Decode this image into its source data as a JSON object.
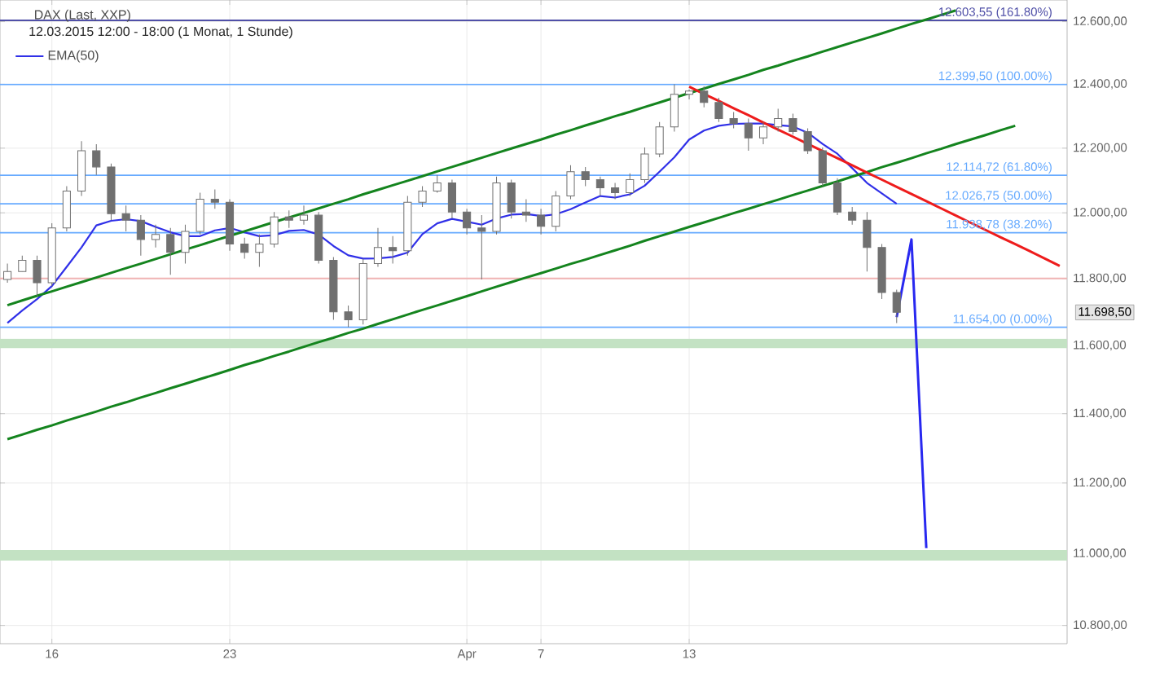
{
  "chart_data": {
    "type": "candlestick",
    "title": "DAX (Last, XXP)",
    "subtitle": "12.03.2015 12:00 - 18:00 (1 Monat, 1 Stunde)",
    "color": "#707070",
    "categories": [
      null,
      null,
      null,
      "16",
      null,
      null,
      null,
      null,
      null,
      null,
      null,
      null,
      null,
      null,
      null,
      "23",
      null,
      null,
      null,
      null,
      null,
      null,
      null,
      null,
      null,
      null,
      null,
      null,
      null,
      null,
      null,
      "Apr",
      null,
      null,
      null,
      null,
      "7",
      null,
      null,
      null,
      null,
      null,
      null,
      null,
      null,
      null,
      "13",
      null,
      null,
      null,
      null,
      null,
      null,
      null,
      null,
      null,
      null,
      null,
      null,
      null,
      null,
      null,
      null,
      null,
      null,
      null,
      null,
      null,
      null,
      null,
      null,
      null
    ],
    "ohlc": [
      [
        11797,
        11845,
        11787,
        11821
      ],
      [
        11821,
        11869,
        11821,
        11855
      ],
      [
        11855,
        11869,
        11748,
        11787
      ],
      [
        11787,
        11967,
        11777,
        11953
      ],
      [
        11953,
        12081,
        11943,
        12066
      ],
      [
        12066,
        12221,
        12051,
        12191
      ],
      [
        12191,
        12211,
        12116,
        12141
      ],
      [
        12141,
        12151,
        11977,
        11997
      ],
      [
        11997,
        12022,
        11943,
        11977
      ],
      [
        11977,
        11992,
        11869,
        11918
      ],
      [
        11918,
        11963,
        11894,
        11933
      ],
      [
        11933,
        11953,
        11811,
        11879
      ],
      [
        11879,
        11963,
        11845,
        11943
      ],
      [
        11943,
        12061,
        11933,
        12041
      ],
      [
        12041,
        12071,
        12012,
        12032
      ],
      [
        12032,
        12041,
        11884,
        11904
      ],
      [
        11904,
        11923,
        11860,
        11879
      ],
      [
        11879,
        11933,
        11835,
        11904
      ],
      [
        11904,
        12002,
        11894,
        11987
      ],
      [
        11987,
        12007,
        11953,
        11977
      ],
      [
        11977,
        12022,
        11963,
        11992
      ],
      [
        11992,
        12002,
        11845,
        11855
      ],
      [
        11855,
        11865,
        11676,
        11700
      ],
      [
        11700,
        11719,
        11654,
        11676
      ],
      [
        11676,
        11860,
        11662,
        11845
      ],
      [
        11845,
        11953,
        11835,
        11894
      ],
      [
        11894,
        11928,
        11845,
        11884
      ],
      [
        11884,
        12051,
        11869,
        12032
      ],
      [
        12032,
        12081,
        12017,
        12066
      ],
      [
        12066,
        12116,
        12061,
        12091
      ],
      [
        12091,
        12101,
        11982,
        12002
      ],
      [
        12002,
        12012,
        11933,
        11953
      ],
      [
        11953,
        11992,
        11797,
        11943
      ],
      [
        11943,
        12111,
        11933,
        12091
      ],
      [
        12091,
        12101,
        11982,
        12002
      ],
      [
        12002,
        12041,
        11972,
        11992
      ],
      [
        11992,
        12012,
        11933,
        11958
      ],
      [
        11958,
        12066,
        11943,
        12051
      ],
      [
        12051,
        12146,
        12041,
        12126
      ],
      [
        12126,
        12141,
        12081,
        12101
      ],
      [
        12101,
        12111,
        12051,
        12076
      ],
      [
        12076,
        12091,
        12041,
        12061
      ],
      [
        12061,
        12121,
        12051,
        12101
      ],
      [
        12101,
        12201,
        12091,
        12181
      ],
      [
        12181,
        12281,
        12171,
        12266
      ],
      [
        12266,
        12399.5,
        12251,
        12368
      ],
      [
        12368,
        12383,
        12352,
        12378
      ],
      [
        12378,
        12393,
        12327,
        12342
      ],
      [
        12342,
        12357,
        12281,
        12292
      ],
      [
        12292,
        12312,
        12261,
        12276
      ],
      [
        12276,
        12292,
        12191,
        12231
      ],
      [
        12231,
        12281,
        12211,
        12266
      ],
      [
        12266,
        12322,
        12251,
        12292
      ],
      [
        12292,
        12307,
        12241,
        12251
      ],
      [
        12251,
        12261,
        12181,
        12191
      ],
      [
        12191,
        12201,
        12081,
        12091
      ],
      [
        12091,
        12106,
        11992,
        12002
      ],
      [
        12002,
        12017,
        11963,
        11977
      ],
      [
        11977,
        12002,
        11821,
        11894
      ],
      [
        11894,
        11904,
        11738,
        11758
      ],
      [
        11758,
        11767,
        11667,
        11698.5
      ],
      null,
      null,
      null,
      null,
      null,
      null,
      null,
      null,
      null,
      null,
      null
    ],
    "series": [
      {
        "name": "EMA(50)",
        "type": "line",
        "color": "#3030e8",
        "values": [
          11667,
          11704,
          11738,
          11777,
          11835,
          11894,
          11961,
          11975,
          11980,
          11974,
          11956,
          11940,
          11928,
          11928,
          11946,
          11953,
          11940,
          11928,
          11931,
          11944,
          11947,
          11933,
          11898,
          11870,
          11860,
          11861,
          11865,
          11878,
          11934,
          11967,
          11981,
          11972,
          11963,
          11982,
          11994,
          11996,
          11990,
          11995,
          12011,
          12031,
          12051,
          12046,
          12056,
          12083,
          12126,
          12171,
          12226,
          12254,
          12269,
          12275,
          12276,
          12276,
          12271,
          12267,
          12247,
          12212,
          12182,
          12137,
          12091,
          12059,
          12027,
          null,
          null,
          null,
          null,
          null,
          null,
          null,
          null,
          null,
          null,
          null
        ]
      },
      {
        "type": "line",
        "color": "#14841e",
        "values": [
          11720,
          11734,
          11748,
          11761,
          11775,
          11789,
          11803,
          11817,
          11831,
          11845,
          11859,
          11873,
          11887,
          11901,
          11915,
          11929,
          11943,
          11957,
          11971,
          11985,
          11999,
          12013,
          12027,
          12041,
          12056,
          12070,
          12084,
          12098,
          12112,
          12127,
          12141,
          12155,
          12169,
          12184,
          12198,
          12212,
          12226,
          12241,
          12255,
          12270,
          12284,
          12299,
          12313,
          12328,
          12342,
          12357,
          12372,
          12386,
          12401,
          12415,
          12430,
          12445,
          12459,
          12474,
          12488,
          12503,
          12518,
          12533,
          12547,
          12562,
          12577,
          12592,
          12606,
          12621,
          12636,
          null,
          null,
          null,
          null,
          null,
          null,
          null
        ]
      },
      {
        "type": "line",
        "color": "#14841e",
        "values": [
          11326,
          11339,
          11353,
          11366,
          11380,
          11393,
          11406,
          11420,
          11433,
          11447,
          11460,
          11474,
          11487,
          11501,
          11514,
          11528,
          11542,
          11555,
          11569,
          11582,
          11596,
          11610,
          11623,
          11637,
          11650,
          11664,
          11678,
          11692,
          11706,
          11719,
          11733,
          11747,
          11761,
          11775,
          11789,
          11803,
          11816,
          11830,
          11844,
          11857,
          11871,
          11885,
          11899,
          11914,
          11928,
          11942,
          11956,
          11970,
          11984,
          11998,
          12012,
          12026,
          12040,
          12054,
          12068,
          12082,
          12096,
          12111,
          12125,
          12140,
          12154,
          12168,
          12183,
          12197,
          12212,
          12226,
          12240,
          12255,
          12269,
          null,
          null,
          null
        ]
      },
      {
        "type": "line",
        "color": "#ee1c1c",
        "values": [
          null,
          null,
          null,
          null,
          null,
          null,
          null,
          null,
          null,
          null,
          null,
          null,
          null,
          null,
          null,
          null,
          null,
          null,
          null,
          null,
          null,
          null,
          null,
          null,
          null,
          null,
          null,
          null,
          null,
          null,
          null,
          null,
          null,
          null,
          null,
          null,
          null,
          null,
          null,
          null,
          null,
          null,
          null,
          null,
          null,
          null,
          12392,
          12369,
          12347,
          12324,
          12302,
          12279,
          12257,
          12235,
          12212,
          12190,
          12168,
          12146,
          12123,
          12101,
          12079,
          12057,
          12035,
          12013,
          11991,
          11969,
          11947,
          11925,
          11904,
          11882,
          11860,
          11838
        ]
      },
      {
        "type": "line",
        "color": "#2828f0",
        "values": [
          null,
          null,
          null,
          null,
          null,
          null,
          null,
          null,
          null,
          null,
          null,
          null,
          null,
          null,
          null,
          null,
          null,
          null,
          null,
          null,
          null,
          null,
          null,
          null,
          null,
          null,
          null,
          null,
          null,
          null,
          null,
          null,
          null,
          null,
          null,
          null,
          null,
          null,
          null,
          null,
          null,
          null,
          null,
          null,
          null,
          null,
          null,
          null,
          null,
          null,
          null,
          null,
          null,
          null,
          null,
          null,
          null,
          null,
          null,
          null,
          11684,
          11918,
          11015,
          null,
          null,
          null,
          null,
          null,
          null,
          null,
          null,
          null
        ]
      }
    ],
    "ylim": [
      10750,
      12670
    ],
    "yticks": [
      {
        "value": 10800,
        "label": "10.800,00"
      },
      {
        "value": 11000,
        "label": "11.000,00"
      },
      {
        "value": 11200,
        "label": "11.200,00"
      },
      {
        "value": 11400,
        "label": "11.400,00"
      },
      {
        "value": 11600,
        "label": "11.600,00"
      },
      {
        "value": 11800,
        "label": "11.800,00"
      },
      {
        "value": 12000,
        "label": "12.000,00"
      },
      {
        "value": 12200,
        "label": "12.200,00"
      },
      {
        "value": 12400,
        "label": "12.400,00"
      },
      {
        "value": 12600,
        "label": "12.600,00"
      }
    ],
    "log": true,
    "ref_lines": [
      {
        "axis": "y",
        "value": 12603.55,
        "label": "12.603,55 (161.80%)",
        "color": "#5050a8"
      },
      {
        "axis": "y",
        "value": 12399.5,
        "label": "12.399,50 (100.00%)",
        "color": "#66aaff"
      },
      {
        "axis": "y",
        "value": 12114.72,
        "label": "12.114,72 (61.80%)",
        "color": "#66aaff"
      },
      {
        "axis": "y",
        "value": 12026.75,
        "label": "12.026,75 (50.00%)",
        "color": "#66aaff"
      },
      {
        "axis": "y",
        "value": 11938.78,
        "label": "11.938,78 (38.20%)",
        "color": "#66aaff"
      },
      {
        "axis": "y",
        "value": 11654,
        "label": "11.654,00 (0.00%)",
        "color": "#66aaff"
      },
      {
        "axis": "y",
        "value": 11800,
        "color": "#f0b4b4"
      }
    ],
    "bands": [
      {
        "axis": "y",
        "from": 11592,
        "to": 11620,
        "color": "#c3e2c3"
      },
      {
        "axis": "y",
        "from": 10980,
        "to": 11010,
        "color": "#c3e2c3"
      }
    ],
    "annotations": [
      "11.698,50"
    ],
    "grid": true,
    "legend": "top left"
  }
}
